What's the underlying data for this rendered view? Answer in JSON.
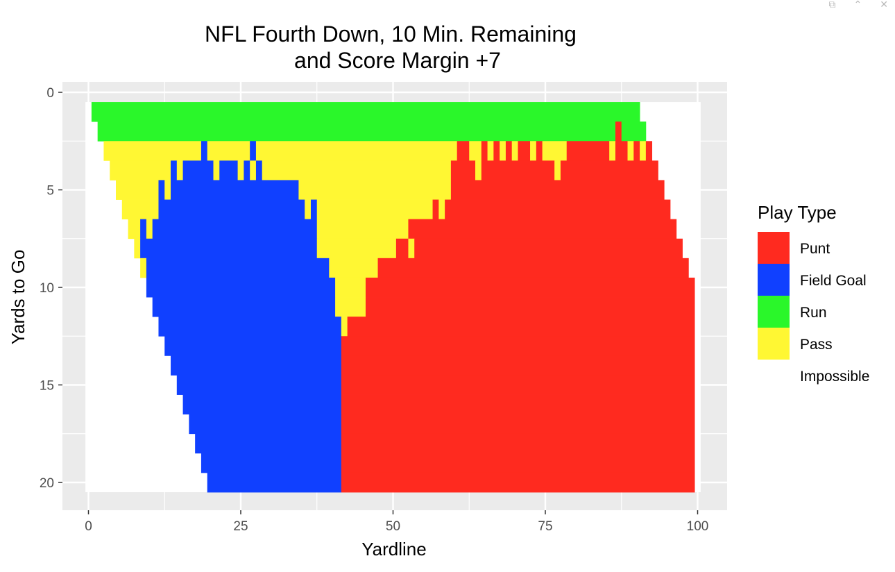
{
  "window": {
    "controls": [
      {
        "name": "popout-icon",
        "glyph": "⧉"
      },
      {
        "name": "collapse-icon",
        "glyph": "⌃"
      },
      {
        "name": "close-icon",
        "glyph": "✕"
      }
    ]
  },
  "chart_data": {
    "type": "heatmap",
    "title": [
      "NFL Fourth Down, 10 Min. Remaining",
      "and Score Margin +7"
    ],
    "xlabel": "Yardline",
    "ylabel": "Yards to Go",
    "xlim": [
      -0.5,
      100.5
    ],
    "ylim": [
      0.5,
      20.5
    ],
    "y_reversed": true,
    "x_ticks": [
      0,
      25,
      50,
      75,
      100
    ],
    "y_ticks": [
      0,
      5,
      10,
      15,
      20
    ],
    "grid": true,
    "legend_position": "right",
    "legend": {
      "title": "Play Type",
      "entries": [
        {
          "label": "Punt",
          "color": "#FF2A1F"
        },
        {
          "label": "Field Goal",
          "color": "#1040FF"
        },
        {
          "label": "Run",
          "color": "#2AF72A"
        },
        {
          "label": "Pass",
          "color": "#FFF733"
        },
        {
          "label": "Impossible",
          "color": "#FFFFFF"
        }
      ]
    },
    "colors": {
      "Punt": "#FF2A1F",
      "Field Goal": "#1040FF",
      "Run": "#2AF72A",
      "Pass": "#FFF733",
      "Impossible": "#FFFFFF"
    },
    "rows": [
      {
        "ytg": 1,
        "segments": [
          [
            "Run",
            1,
            90
          ]
        ]
      },
      {
        "ytg": 2,
        "segments": [
          [
            "Run",
            2,
            86
          ],
          [
            "Punt",
            87,
            87
          ],
          [
            "Run",
            88,
            91
          ]
        ]
      },
      {
        "ytg": 3,
        "segments": [
          [
            "Pass",
            3,
            18
          ],
          [
            "Field Goal",
            19,
            19
          ],
          [
            "Pass",
            20,
            26
          ],
          [
            "Field Goal",
            27,
            27
          ],
          [
            "Pass",
            28,
            60
          ],
          [
            "Punt",
            61,
            62
          ],
          [
            "Pass",
            63,
            64
          ],
          [
            "Punt",
            65,
            65
          ],
          [
            "Pass",
            66,
            66
          ],
          [
            "Punt",
            67,
            67
          ],
          [
            "Pass",
            68,
            68
          ],
          [
            "Punt",
            69,
            69
          ],
          [
            "Pass",
            70,
            70
          ],
          [
            "Punt",
            71,
            72
          ],
          [
            "Pass",
            73,
            73
          ],
          [
            "Punt",
            74,
            74
          ],
          [
            "Pass",
            75,
            78
          ],
          [
            "Punt",
            79,
            85
          ],
          [
            "Pass",
            86,
            86
          ],
          [
            "Punt",
            87,
            88
          ],
          [
            "Pass",
            89,
            89
          ],
          [
            "Punt",
            90,
            90
          ],
          [
            "Pass",
            91,
            91
          ],
          [
            "Punt",
            92,
            92
          ]
        ]
      },
      {
        "ytg": 4,
        "segments": [
          [
            "Pass",
            4,
            13
          ],
          [
            "Field Goal",
            14,
            14
          ],
          [
            "Pass",
            15,
            15
          ],
          [
            "Field Goal",
            16,
            20
          ],
          [
            "Pass",
            21,
            21
          ],
          [
            "Field Goal",
            22,
            24
          ],
          [
            "Pass",
            25,
            25
          ],
          [
            "Field Goal",
            26,
            26
          ],
          [
            "Pass",
            27,
            27
          ],
          [
            "Field Goal",
            28,
            28
          ],
          [
            "Pass",
            29,
            59
          ],
          [
            "Punt",
            60,
            63
          ],
          [
            "Pass",
            64,
            64
          ],
          [
            "Punt",
            65,
            76
          ],
          [
            "Pass",
            77,
            77
          ],
          [
            "Punt",
            78,
            93
          ]
        ]
      },
      {
        "ytg": 5,
        "segments": [
          [
            "Pass",
            5,
            11
          ],
          [
            "Field Goal",
            12,
            12
          ],
          [
            "Pass",
            13,
            13
          ],
          [
            "Field Goal",
            14,
            34
          ],
          [
            "Pass",
            35,
            59
          ],
          [
            "Punt",
            60,
            94
          ]
        ]
      },
      {
        "ytg": 6,
        "segments": [
          [
            "Pass",
            6,
            11
          ],
          [
            "Field Goal",
            12,
            35
          ],
          [
            "Pass",
            36,
            36
          ],
          [
            "Field Goal",
            37,
            37
          ],
          [
            "Pass",
            38,
            56
          ],
          [
            "Punt",
            57,
            57
          ],
          [
            "Pass",
            58,
            58
          ],
          [
            "Punt",
            59,
            95
          ]
        ]
      },
      {
        "ytg": 7,
        "segments": [
          [
            "Pass",
            7,
            8
          ],
          [
            "Field Goal",
            9,
            9
          ],
          [
            "Pass",
            10,
            10
          ],
          [
            "Field Goal",
            11,
            37
          ],
          [
            "Pass",
            38,
            52
          ],
          [
            "Punt",
            53,
            96
          ]
        ]
      },
      {
        "ytg": 8,
        "segments": [
          [
            "Pass",
            8,
            8
          ],
          [
            "Field Goal",
            9,
            37
          ],
          [
            "Pass",
            38,
            50
          ],
          [
            "Punt",
            51,
            52
          ],
          [
            "Pass",
            53,
            53
          ],
          [
            "Punt",
            54,
            97
          ]
        ]
      },
      {
        "ytg": 9,
        "segments": [
          [
            "Pass",
            9,
            9
          ],
          [
            "Field Goal",
            10,
            39
          ],
          [
            "Pass",
            40,
            47
          ],
          [
            "Punt",
            48,
            98
          ]
        ]
      },
      {
        "ytg": 10,
        "segments": [
          [
            "Field Goal",
            10,
            40
          ],
          [
            "Pass",
            41,
            45
          ],
          [
            "Punt",
            46,
            99
          ]
        ]
      },
      {
        "ytg": 11,
        "segments": [
          [
            "Field Goal",
            11,
            40
          ],
          [
            "Pass",
            41,
            45
          ],
          [
            "Punt",
            46,
            99
          ]
        ]
      },
      {
        "ytg": 12,
        "segments": [
          [
            "Field Goal",
            12,
            41
          ],
          [
            "Pass",
            42,
            42
          ],
          [
            "Punt",
            43,
            99
          ]
        ]
      },
      {
        "ytg": 13,
        "segments": [
          [
            "Field Goal",
            13,
            41
          ],
          [
            "Punt",
            42,
            99
          ]
        ]
      },
      {
        "ytg": 14,
        "segments": [
          [
            "Field Goal",
            14,
            41
          ],
          [
            "Punt",
            42,
            99
          ]
        ]
      },
      {
        "ytg": 15,
        "segments": [
          [
            "Field Goal",
            15,
            41
          ],
          [
            "Punt",
            42,
            99
          ]
        ]
      },
      {
        "ytg": 16,
        "segments": [
          [
            "Field Goal",
            16,
            41
          ],
          [
            "Punt",
            42,
            99
          ]
        ]
      },
      {
        "ytg": 17,
        "segments": [
          [
            "Field Goal",
            17,
            41
          ],
          [
            "Punt",
            42,
            99
          ]
        ]
      },
      {
        "ytg": 18,
        "segments": [
          [
            "Field Goal",
            18,
            41
          ],
          [
            "Punt",
            42,
            99
          ]
        ]
      },
      {
        "ytg": 19,
        "segments": [
          [
            "Field Goal",
            19,
            41
          ],
          [
            "Punt",
            42,
            99
          ]
        ]
      },
      {
        "ytg": 20,
        "segments": [
          [
            "Field Goal",
            20,
            41
          ],
          [
            "Punt",
            42,
            99
          ]
        ]
      }
    ]
  }
}
